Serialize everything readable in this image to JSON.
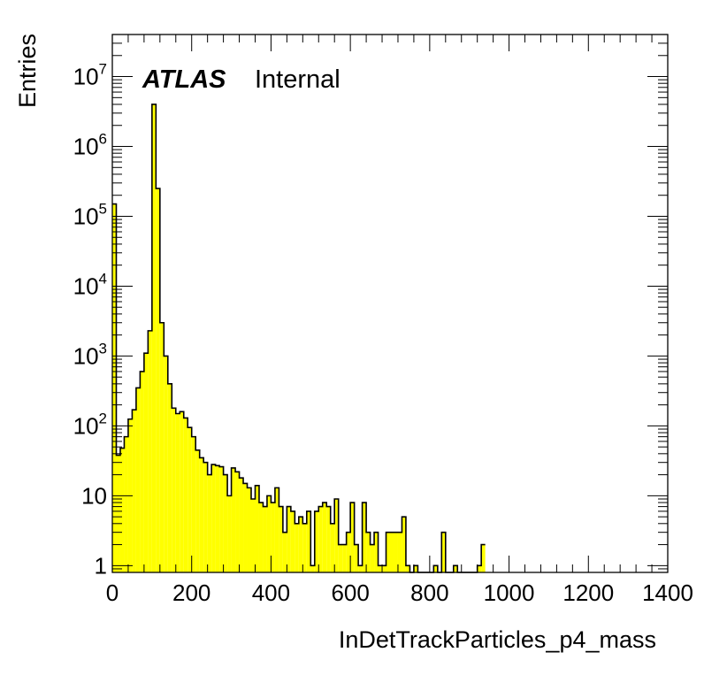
{
  "chart_data": {
    "type": "bar",
    "style": "step-filled histogram",
    "fill_color": "#ffff00",
    "line_color": "#000000",
    "xlabel": "InDetTrackParticles_p4_mass",
    "ylabel": "Entries",
    "label_bold": "ATLAS",
    "label_normal": "Internal",
    "xlim": [
      0,
      1400
    ],
    "ylim": [
      0.8,
      40000000
    ],
    "yscale": "log",
    "grid": false,
    "x_ticks": [
      "0",
      "200",
      "400",
      "600",
      "800",
      "1000",
      "1200",
      "1400"
    ],
    "y_ticks": [
      {
        "value": 1,
        "base": "1",
        "exp": ""
      },
      {
        "value": 10,
        "base": "10",
        "exp": ""
      },
      {
        "value": 100,
        "base": "10",
        "exp": "2"
      },
      {
        "value": 1000,
        "base": "10",
        "exp": "3"
      },
      {
        "value": 10000,
        "base": "10",
        "exp": "4"
      },
      {
        "value": 100000,
        "base": "10",
        "exp": "5"
      },
      {
        "value": 1000000,
        "base": "10",
        "exp": "6"
      },
      {
        "value": 10000000,
        "base": "10",
        "exp": "7"
      }
    ],
    "bin_width": 10,
    "bin_start": 0,
    "values": [
      150000,
      38,
      48,
      70,
      125,
      170,
      350,
      600,
      1100,
      2300,
      4000000,
      250000,
      3000,
      1000,
      400,
      180,
      150,
      160,
      130,
      95,
      70,
      45,
      35,
      30,
      20,
      28,
      27,
      26,
      20,
      10,
      25,
      22,
      18,
      15,
      13,
      9,
      14,
      8,
      7,
      10,
      8,
      13,
      7,
      3,
      7,
      6,
      4,
      5,
      4,
      6,
      1,
      6,
      7,
      8,
      7,
      4,
      9,
      2,
      2,
      3,
      8,
      2,
      1,
      8,
      3,
      2,
      3,
      1,
      1,
      3,
      3,
      3,
      3,
      5,
      1,
      0,
      1,
      0,
      0,
      0,
      0,
      1,
      0,
      3,
      0,
      0,
      1,
      0,
      0,
      0,
      0,
      0,
      1,
      2
    ]
  }
}
